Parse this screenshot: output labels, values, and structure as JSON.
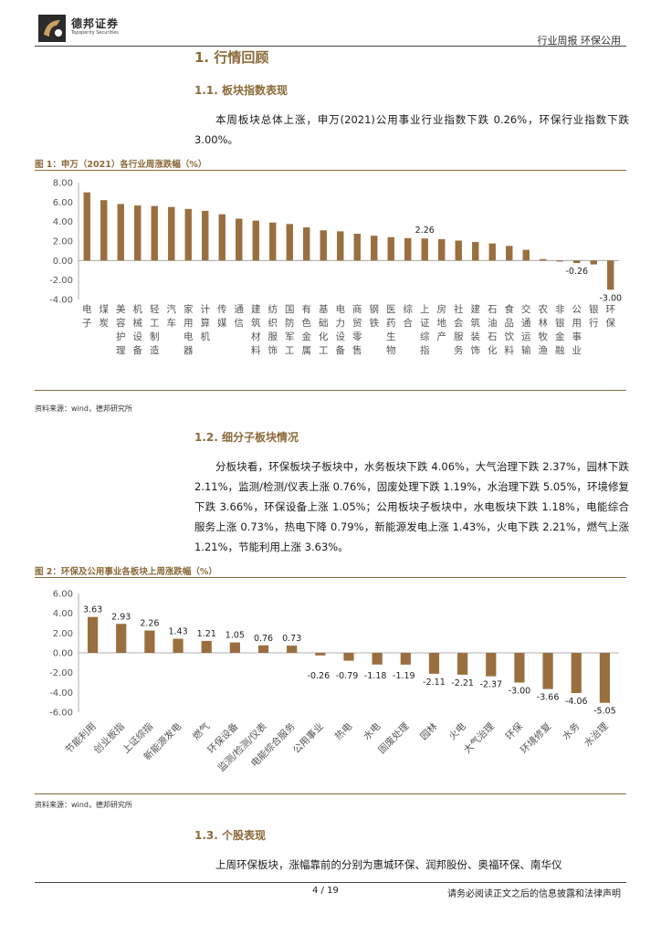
{
  "header": {
    "company_name": "德邦证券",
    "company_sub": "Topsperity Securities",
    "right_text": "行业周报  环保公用"
  },
  "section1": {
    "title": "1. 行情回顾"
  },
  "section1_1": {
    "title": "1.1. 板块指数表现",
    "paragraph": "本周板块总体上涨，申万(2021)公用事业行业指数下跌 0.26%，环保行业指数下跌 3.00%。"
  },
  "figure1": {
    "title": "图 1：申万（2021）各行业周涨跌幅（%）",
    "source": "资料来源：wind，德邦研究所"
  },
  "section1_2": {
    "title": "1.2. 细分子板块情况",
    "paragraph": "分板块看，环保板块子板块中，水务板块下跌 4.06%，大气治理下跌 2.37%，园林下跌 2.11%，监测/检测/仪表上涨 0.76%，固废处理下跌 1.19%，水治理下跌 5.05%，环境修复下跌 3.66%，环保设备上涨 1.05%；公用板块子板块中，水电板块下跌 1.18%，电能综合服务上涨 0.73%，热电下降 0.79%，新能源发电上涨 1.43%，火电下跌 2.21%，燃气上涨 1.21%，节能利用上涨 3.63%。"
  },
  "figure2": {
    "title": "图 2：环保及公用事业各板块上周涨跌幅（%）",
    "source": "资料来源：wind，德邦研究所"
  },
  "section1_3": {
    "title": "1.3. 个股表现",
    "paragraph": "上周环保板块，涨幅靠前的分别为惠城环保、润邦股份、奥福环保、南华仪"
  },
  "footer": {
    "page": "4 / 19",
    "disclaimer": "请务必阅读正文之后的信息披露和法律声明"
  },
  "colors": {
    "bar": "#9a6f3f",
    "accent": "#8b6a3a"
  },
  "chart_data": [
    {
      "type": "bar",
      "categories": [
        "电子",
        "煤炭",
        "美容护理",
        "机械设备",
        "轻工制造",
        "汽车",
        "家用电器",
        "计算机",
        "传媒",
        "通信",
        "建筑材料",
        "纺织服饰",
        "国防军工",
        "有色金属",
        "基础化工",
        "电力设备",
        "商贸零售",
        "钢铁",
        "医药生物",
        "综合",
        "上证综指",
        "房地产",
        "社会服务",
        "建筑装饰",
        "石油石化",
        "食品饮料",
        "交通运输",
        "农林牧渔",
        "非银金融",
        "公用事业",
        "银行",
        "环保"
      ],
      "values": [
        7.0,
        6.2,
        5.8,
        5.65,
        5.6,
        5.5,
        5.3,
        5.1,
        4.75,
        4.3,
        4.1,
        3.9,
        3.75,
        3.4,
        3.1,
        3.0,
        2.75,
        2.55,
        2.4,
        2.3,
        2.26,
        2.2,
        2.05,
        1.9,
        1.75,
        1.5,
        1.1,
        0.15,
        -0.1,
        -0.26,
        -0.4,
        -3.0
      ],
      "data_labels": {
        "上证综指": "2.26",
        "公用事业": "-0.26",
        "环保": "-3.00"
      },
      "ylim": [
        -4,
        8
      ],
      "yticks": [
        "8.00",
        "6.00",
        "4.00",
        "2.00",
        "0.00",
        "-2.00",
        "-4.00"
      ],
      "grid": false
    },
    {
      "type": "bar",
      "categories": [
        "节能利用",
        "创业板指",
        "上证综指",
        "新能源发电",
        "燃气",
        "环保设备",
        "监测/检测/仪表",
        "电能综合服务",
        "公用事业",
        "热电",
        "水电",
        "固废处理",
        "园林",
        "火电",
        "大气治理",
        "环保",
        "环境修复",
        "水务",
        "水治理"
      ],
      "values": [
        3.63,
        2.93,
        2.26,
        1.43,
        1.21,
        1.05,
        0.76,
        0.73,
        -0.26,
        -0.79,
        -1.18,
        -1.19,
        -2.11,
        -2.21,
        -2.37,
        -3.0,
        -3.66,
        -4.06,
        -5.05
      ],
      "labels": [
        "3.63",
        "2.93",
        "2.26",
        "1.43",
        "1.21",
        "1.05",
        "0.76",
        "0.73",
        "-0.26",
        "-0.79",
        "-1.18",
        "-1.19",
        "-2.11",
        "-2.21",
        "-2.37",
        "-3.00",
        "-3.66",
        "-4.06",
        "-5.05"
      ],
      "ylim": [
        -6,
        6
      ],
      "yticks": [
        "6.00",
        "4.00",
        "2.00",
        "0.00",
        "-2.00",
        "-4.00",
        "-6.00"
      ],
      "grid": false
    }
  ]
}
